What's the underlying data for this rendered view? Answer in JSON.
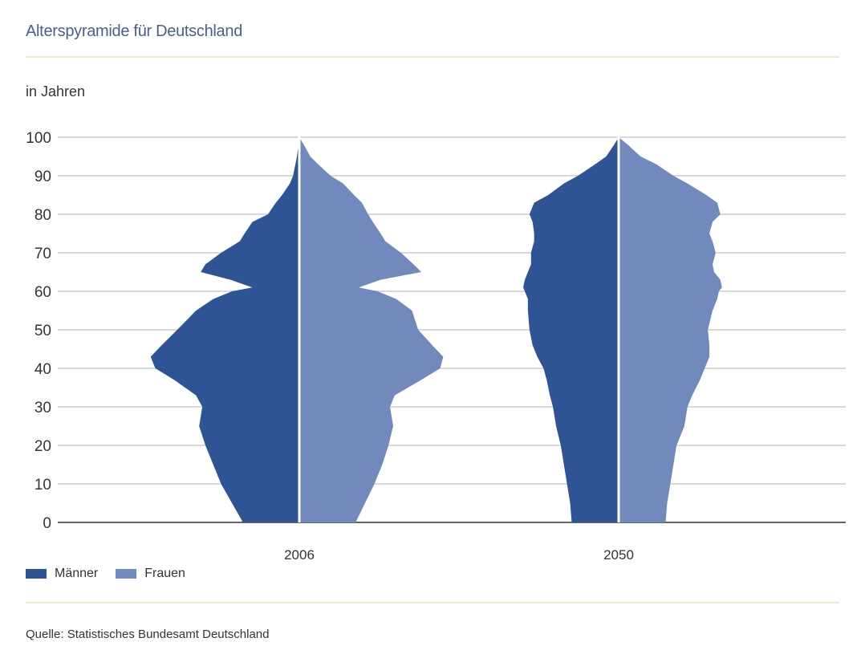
{
  "title": "Alterspyramide für Deutschland",
  "source": "Quelle: Statistisches Bundesamt Deutschland",
  "colors": {
    "men": "#2f5496",
    "women": "#7289bd",
    "grid": "#d9d9d9",
    "axis": "#666666",
    "rule": "#f2e6cc"
  },
  "chart_data": {
    "type": "area",
    "ylabel": "in Jahren",
    "ylim": [
      0,
      100
    ],
    "yticks": [
      0,
      10,
      20,
      30,
      40,
      50,
      60,
      70,
      80,
      90,
      100
    ],
    "ages": [
      0,
      5,
      10,
      15,
      20,
      25,
      30,
      33,
      37,
      40,
      43,
      46,
      50,
      55,
      58,
      60,
      61,
      63,
      65,
      67,
      70,
      73,
      75,
      78,
      80,
      83,
      85,
      88,
      90,
      93,
      95,
      98,
      100
    ],
    "legend": [
      "Männer",
      "Frauen"
    ],
    "pyramids": [
      {
        "label": "2006",
        "men": [
          0.36,
          0.43,
          0.5,
          0.55,
          0.6,
          0.64,
          0.62,
          0.66,
          0.8,
          0.92,
          0.95,
          0.88,
          0.78,
          0.66,
          0.55,
          0.43,
          0.3,
          0.44,
          0.63,
          0.6,
          0.5,
          0.38,
          0.35,
          0.3,
          0.2,
          0.15,
          0.11,
          0.06,
          0.04,
          0.025,
          0.015,
          0.005,
          0.0
        ],
        "women": [
          0.36,
          0.42,
          0.48,
          0.53,
          0.57,
          0.6,
          0.58,
          0.61,
          0.78,
          0.9,
          0.92,
          0.85,
          0.76,
          0.72,
          0.62,
          0.5,
          0.38,
          0.52,
          0.78,
          0.73,
          0.65,
          0.55,
          0.52,
          0.47,
          0.44,
          0.4,
          0.35,
          0.28,
          0.2,
          0.12,
          0.07,
          0.03,
          0.0
        ]
      },
      {
        "label": "2050",
        "men": [
          0.3,
          0.31,
          0.33,
          0.35,
          0.37,
          0.4,
          0.42,
          0.44,
          0.46,
          0.48,
          0.52,
          0.55,
          0.57,
          0.58,
          0.58,
          0.6,
          0.61,
          0.6,
          0.58,
          0.56,
          0.56,
          0.54,
          0.54,
          0.55,
          0.57,
          0.54,
          0.45,
          0.35,
          0.26,
          0.15,
          0.08,
          0.03,
          0.0
        ],
        "women": [
          0.3,
          0.31,
          0.33,
          0.35,
          0.37,
          0.42,
          0.44,
          0.47,
          0.52,
          0.55,
          0.58,
          0.58,
          0.57,
          0.6,
          0.63,
          0.64,
          0.66,
          0.65,
          0.61,
          0.6,
          0.62,
          0.6,
          0.58,
          0.6,
          0.65,
          0.63,
          0.56,
          0.44,
          0.35,
          0.24,
          0.14,
          0.06,
          0.0
        ]
      }
    ]
  }
}
